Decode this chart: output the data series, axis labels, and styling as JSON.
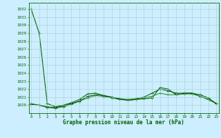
{
  "line1": {
    "x": [
      0,
      1,
      2,
      3,
      4,
      5,
      6,
      7,
      8,
      9,
      10,
      11,
      12,
      13,
      14,
      15,
      16,
      17,
      18,
      19,
      20,
      21,
      22,
      23
    ],
    "y": [
      1032.0,
      1029.0,
      1020.2,
      1019.8,
      1020.0,
      1020.3,
      1020.7,
      1021.4,
      1021.5,
      1021.2,
      1021.0,
      1020.8,
      1020.6,
      1020.7,
      1020.8,
      1020.9,
      1022.2,
      1022.0,
      1021.3,
      1021.5,
      1021.5,
      1021.1,
      1020.7,
      1020.2
    ],
    "color": "#006400",
    "linewidth": 0.8,
    "marker": "+",
    "markersize": 3.5
  },
  "line2": {
    "x": [
      0,
      1,
      2,
      3,
      4,
      5,
      6,
      7,
      8,
      9,
      10,
      11,
      12,
      13,
      14,
      15,
      16,
      17,
      18,
      19,
      20,
      21,
      22,
      23
    ],
    "y": [
      1020.2,
      1020.0,
      1019.7,
      1019.6,
      1019.8,
      1020.1,
      1020.5,
      1020.9,
      1021.2,
      1021.1,
      1020.9,
      1020.7,
      1020.6,
      1020.7,
      1020.9,
      1021.1,
      1021.5,
      1021.3,
      1021.3,
      1021.4,
      1021.4,
      1021.1,
      1020.7,
      1020.2
    ],
    "color": "#228B22",
    "linewidth": 0.7,
    "marker": "+",
    "markersize": 3.0
  },
  "line3": {
    "x": [
      0,
      1,
      2,
      3,
      4,
      5,
      6,
      7,
      8,
      9,
      10,
      11,
      12,
      13,
      14,
      15,
      16,
      17,
      18,
      19,
      20,
      21,
      22,
      23
    ],
    "y": [
      1020.1,
      1020.0,
      1019.8,
      1019.7,
      1019.9,
      1020.2,
      1020.5,
      1021.1,
      1021.3,
      1021.2,
      1021.0,
      1020.8,
      1020.7,
      1020.8,
      1021.0,
      1021.5,
      1022.0,
      1021.8,
      1021.5,
      1021.5,
      1021.5,
      1021.3,
      1020.9,
      1020.2
    ],
    "color": "#005000",
    "linewidth": 0.7,
    "marker": "+",
    "markersize": 2.5
  },
  "background_color": "#cceeff",
  "grid_color": "#aacccc",
  "ylim": [
    1019.0,
    1032.8
  ],
  "yticks": [
    1020,
    1021,
    1022,
    1023,
    1024,
    1025,
    1026,
    1027,
    1028,
    1029,
    1030,
    1031,
    1032
  ],
  "xlim": [
    -0.3,
    23.3
  ],
  "xticks": [
    0,
    1,
    2,
    3,
    4,
    5,
    6,
    7,
    8,
    9,
    10,
    11,
    12,
    13,
    14,
    15,
    16,
    17,
    18,
    19,
    20,
    21,
    22,
    23
  ],
  "xlabel": "Graphe pression niveau de la mer (hPa)",
  "axis_color": "#006400",
  "tick_color": "#006400",
  "label_color": "#006400"
}
